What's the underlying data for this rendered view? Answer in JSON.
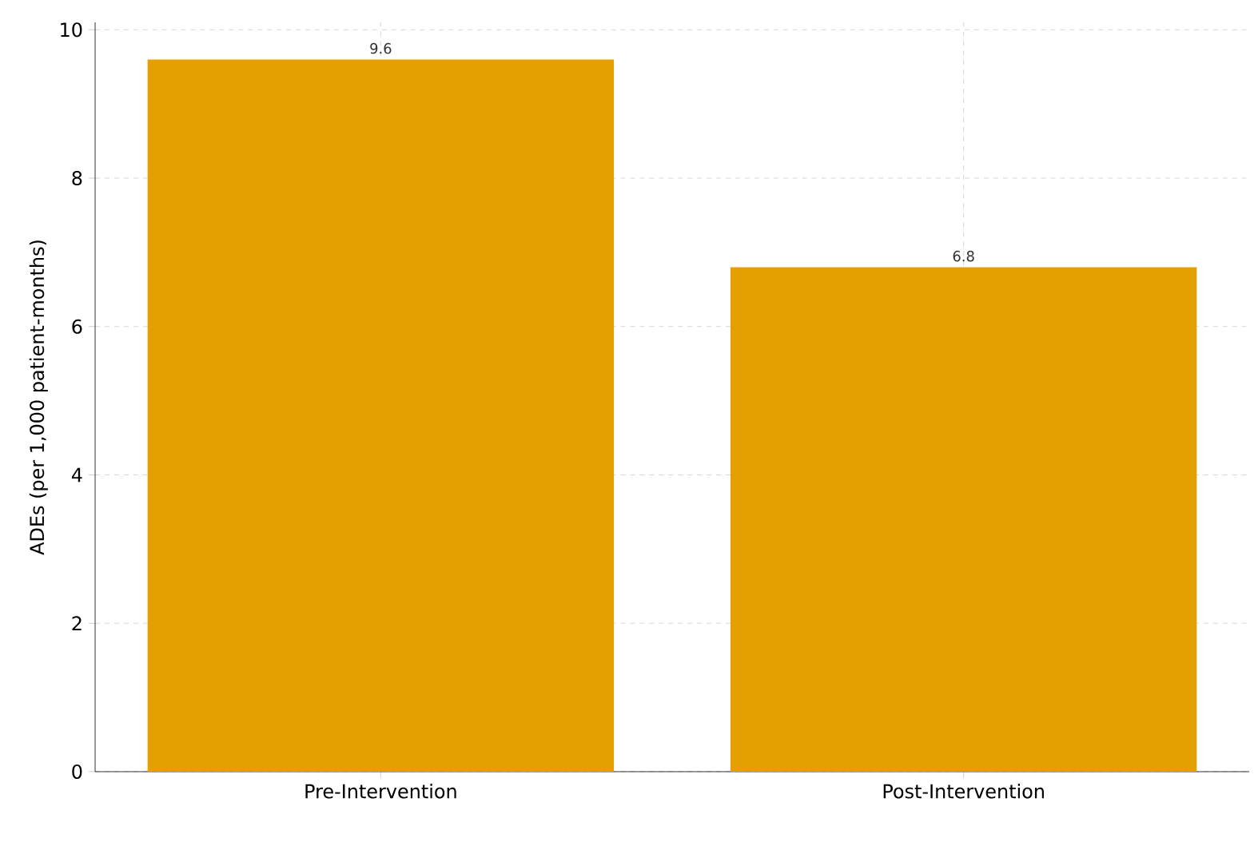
{
  "chart_data": {
    "type": "bar",
    "ylabel": "ADEs (per 1,000 patient-months)",
    "categories": [
      "Pre-Intervention",
      "Post-Intervention"
    ],
    "values": [
      9.6,
      6.8
    ],
    "color": "#e3a000",
    "ylim": [
      0,
      10.1
    ],
    "yticks": [
      0,
      2,
      4,
      6,
      8,
      10
    ],
    "grid": true,
    "data_labels": true
  }
}
